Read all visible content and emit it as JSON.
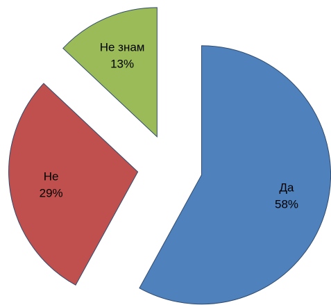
{
  "chart_data": {
    "type": "pie",
    "categories": [
      "Да",
      "Не",
      "Не знам"
    ],
    "values": [
      58,
      29,
      13
    ],
    "value_labels": [
      "58%",
      "29%",
      "13%"
    ],
    "colors": [
      "#4f81bd",
      "#c0504d",
      "#9bbb59"
    ],
    "exploded": true
  }
}
